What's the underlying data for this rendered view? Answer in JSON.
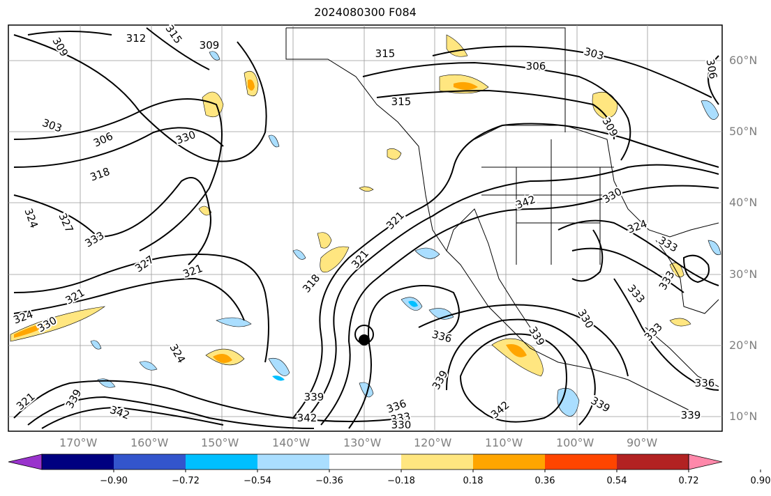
{
  "title": "2024080300 F084",
  "lat_labels": [
    "60°N",
    "50°N",
    "40°N",
    "30°N",
    "20°N",
    "10°N"
  ],
  "lon_labels": [
    "170°W",
    "160°W",
    "150°W",
    "140°W",
    "130°W",
    "120°W",
    "110°W",
    "100°W",
    "90°W"
  ],
  "contour_labels": [
    "309",
    "312",
    "315",
    "303",
    "306",
    "318",
    "330",
    "324",
    "327",
    "333",
    "321",
    "336",
    "339",
    "342"
  ],
  "colorbar": {
    "ticks": [
      "−0.90",
      "−0.72",
      "−0.54",
      "−0.36",
      "−0.18",
      "0.18",
      "0.36",
      "0.54",
      "0.72",
      "0.90"
    ],
    "colors": [
      "#9933cc",
      "#000080",
      "#3355cc",
      "#00bfff",
      "#aadeff",
      "#ffffff",
      "#ffe680",
      "#ffa500",
      "#ff4500",
      "#b22222",
      "#ff88aa"
    ]
  },
  "colors": {
    "land_border": "#000000",
    "grid": "#999999",
    "contour": "#000000"
  }
}
